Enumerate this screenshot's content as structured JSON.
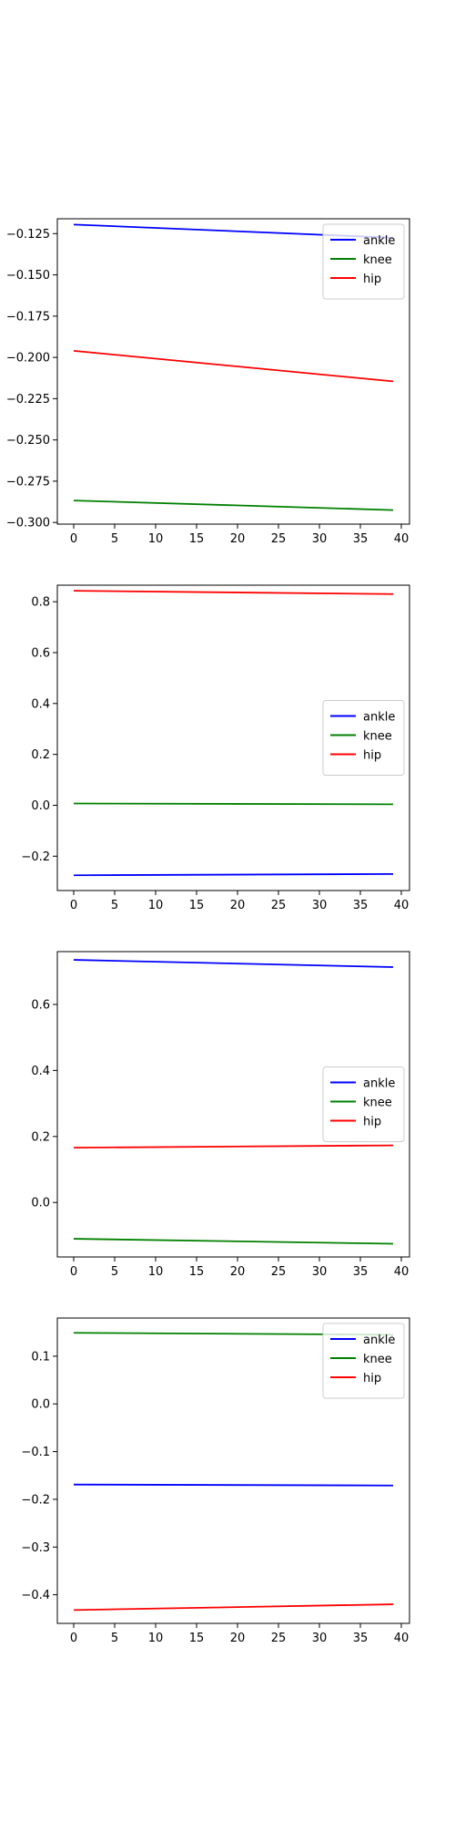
{
  "chart_data": [
    {
      "type": "line",
      "x": [
        0,
        39
      ],
      "xticks": [
        0,
        5,
        10,
        15,
        20,
        25,
        30,
        35,
        40
      ],
      "xlim": [
        -2,
        41
      ],
      "ylim": [
        -0.301,
        -0.116
      ],
      "yticks": [
        -0.125,
        -0.15,
        -0.175,
        -0.2,
        -0.225,
        -0.25,
        -0.275,
        -0.3
      ],
      "ytick_labels": [
        "−0.125",
        "−0.150",
        "−0.175",
        "−0.200",
        "−0.225",
        "−0.250",
        "−0.275",
        "−0.300"
      ],
      "legend_position": "top-right",
      "grid": false,
      "series": [
        {
          "name": "ankle",
          "color": "#0000ff",
          "values": [
            -0.1195,
            -0.1275
          ]
        },
        {
          "name": "knee",
          "color": "#008000",
          "values": [
            -0.2867,
            -0.2925
          ]
        },
        {
          "name": "hip",
          "color": "#ff0000",
          "values": [
            -0.196,
            -0.2145
          ]
        }
      ]
    },
    {
      "type": "line",
      "x": [
        0,
        39
      ],
      "xticks": [
        0,
        5,
        10,
        15,
        20,
        25,
        30,
        35,
        40
      ],
      "xlim": [
        -2,
        41
      ],
      "ylim": [
        -0.335,
        0.865
      ],
      "yticks": [
        0.8,
        0.6,
        0.4,
        0.2,
        0.0,
        -0.2
      ],
      "ytick_labels": [
        "0.8",
        "0.6",
        "0.4",
        "0.2",
        "0.0",
        "−0.2"
      ],
      "legend_position": "center-right",
      "grid": false,
      "series": [
        {
          "name": "ankle",
          "color": "#0000ff",
          "values": [
            -0.275,
            -0.27
          ]
        },
        {
          "name": "knee",
          "color": "#008000",
          "values": [
            0.007,
            0.004
          ]
        },
        {
          "name": "hip",
          "color": "#ff0000",
          "values": [
            0.843,
            0.83
          ]
        }
      ]
    },
    {
      "type": "line",
      "x": [
        0,
        39
      ],
      "xticks": [
        0,
        5,
        10,
        15,
        20,
        25,
        30,
        35,
        40
      ],
      "xlim": [
        -2,
        41
      ],
      "ylim": [
        -0.165,
        0.76
      ],
      "yticks": [
        0.6,
        0.4,
        0.2,
        0.0
      ],
      "ytick_labels": [
        "0.6",
        "0.4",
        "0.2",
        "0.0"
      ],
      "legend_position": "center-right",
      "grid": false,
      "series": [
        {
          "name": "ankle",
          "color": "#0000ff",
          "values": [
            0.735,
            0.713
          ]
        },
        {
          "name": "knee",
          "color": "#008000",
          "values": [
            -0.11,
            -0.125
          ]
        },
        {
          "name": "hip",
          "color": "#ff0000",
          "values": [
            0.166,
            0.173
          ]
        }
      ]
    },
    {
      "type": "line",
      "x": [
        0,
        39
      ],
      "xticks": [
        0,
        5,
        10,
        15,
        20,
        25,
        30,
        35,
        40
      ],
      "xlim": [
        -2,
        41
      ],
      "ylim": [
        -0.46,
        0.18
      ],
      "yticks": [
        0.1,
        0.0,
        -0.1,
        -0.2,
        -0.3,
        -0.4
      ],
      "ytick_labels": [
        "0.1",
        "0.0",
        "−0.1",
        "−0.2",
        "−0.3",
        "−0.4"
      ],
      "legend_position": "top-right",
      "grid": false,
      "series": [
        {
          "name": "ankle",
          "color": "#0000ff",
          "values": [
            -0.169,
            -0.171
          ]
        },
        {
          "name": "knee",
          "color": "#008000",
          "values": [
            0.149,
            0.145
          ]
        },
        {
          "name": "hip",
          "color": "#ff0000",
          "values": [
            -0.432,
            -0.42
          ]
        }
      ]
    }
  ]
}
